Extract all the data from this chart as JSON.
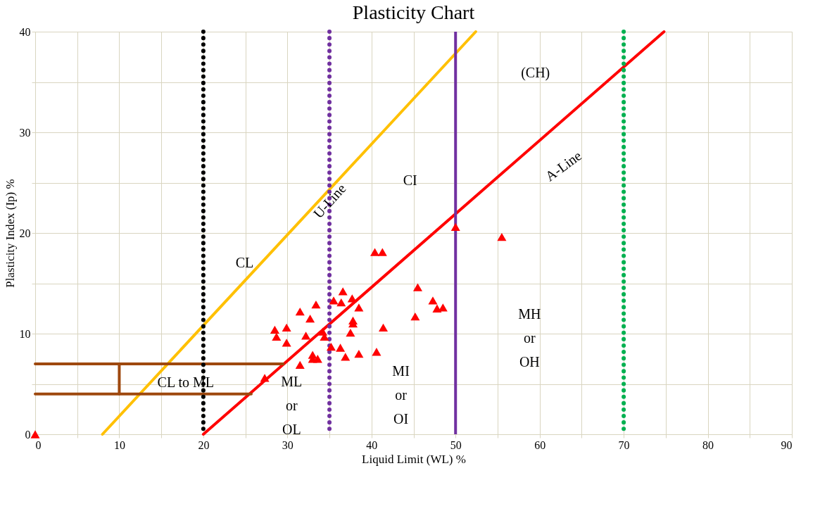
{
  "chart_data": {
    "type": "scatter",
    "title": "Plasticity Chart",
    "xlabel": "Liquid Limit (WL) %",
    "ylabel": "Plasticity Index (Ip) %",
    "xlim": [
      0,
      90
    ],
    "ylim": [
      0,
      40
    ],
    "xticks": [
      0,
      {
        "value": 5,
        "label": null
      },
      10,
      {
        "value": 15,
        "label": null
      },
      20,
      {
        "value": 25,
        "label": null
      },
      30,
      {
        "value": 35,
        "label": null
      },
      40,
      {
        "value": 45,
        "label": null
      },
      50,
      {
        "value": 55,
        "label": null
      },
      60,
      {
        "value": 65,
        "label": null
      },
      70,
      {
        "value": 75,
        "label": null
      },
      80,
      {
        "value": 85,
        "label": null
      },
      90
    ],
    "yticks": [
      0,
      {
        "value": 5,
        "label": null
      },
      10,
      {
        "value": 15,
        "label": null
      },
      20,
      {
        "value": 25,
        "label": null
      },
      30,
      {
        "value": 35,
        "label": null
      },
      40
    ],
    "grid": true,
    "series": [
      {
        "color": "#ff0000",
        "marker": "triangle",
        "x": [
          0,
          27.3,
          40.4,
          41.3,
          45.5,
          36.6,
          37.7,
          35.5,
          36.4,
          33.4,
          38.5,
          31.5,
          47.3,
          47.8,
          48.5,
          32.7,
          37.8,
          37.8,
          45.2,
          28.5,
          29.9,
          41.4,
          37.5,
          34.2,
          28.7,
          32.2,
          34.4,
          29.9,
          35.2,
          36.3,
          38.5,
          36.9,
          40.6,
          33.0,
          33.0,
          33.6,
          31.5,
          50.0,
          55.5
        ],
        "values": [
          0,
          5.6,
          18.1,
          18.1,
          14.6,
          14.2,
          13.5,
          13.3,
          13.1,
          12.9,
          12.6,
          12.2,
          13.3,
          12.5,
          12.6,
          11.5,
          11.3,
          11.0,
          11.7,
          10.4,
          10.6,
          10.6,
          10.1,
          10.2,
          9.7,
          9.8,
          9.7,
          9.1,
          8.7,
          8.6,
          8.0,
          7.7,
          8.2,
          7.9,
          7.5,
          7.5,
          6.9,
          20.6,
          19.6
        ]
      },
      {
        "type": "line",
        "line_style": "solid",
        "color": "#ff0000",
        "x": [
          20,
          74.8
        ],
        "values": [
          0,
          40
        ]
      },
      {
        "type": "line",
        "line_style": "solid",
        "color": "#ffc000",
        "x": [
          8,
          52.4
        ],
        "values": [
          0,
          40
        ]
      },
      {
        "type": "line",
        "line_style": "solid",
        "color": "#9e480e",
        "x": [
          0,
          29.5
        ],
        "values": [
          7,
          7
        ]
      },
      {
        "type": "line",
        "line_style": "solid",
        "color": "#9e480e",
        "x": [
          0,
          25.7
        ],
        "values": [
          4,
          4
        ]
      },
      {
        "type": "line",
        "line_style": "solid",
        "color": "#9e480e",
        "x": [
          10,
          10
        ],
        "values": [
          4,
          7
        ]
      }
    ],
    "ref_lines": [
      {
        "axis": "x",
        "value": 20,
        "color": "#000000",
        "line_style": "dotted"
      },
      {
        "axis": "x",
        "value": 35,
        "color": "#7030a0",
        "line_style": "dotted"
      },
      {
        "axis": "x",
        "value": 50,
        "color": "#7030a0",
        "line_style": "solid"
      },
      {
        "axis": "x",
        "value": 70,
        "color": "#00b050",
        "line_style": "dotted"
      }
    ],
    "annotations": [
      "CL",
      {
        "text": "U-Line",
        "x": 34.1,
        "y": 23.5
      },
      "CI",
      "(CH)",
      {
        "text": "A-Line",
        "x": 60.0,
        "y": 29.2
      },
      "MH\nor\nOH",
      "MI\nor\nOI",
      "ML\nor\nOL",
      "CL to ML"
    ]
  }
}
